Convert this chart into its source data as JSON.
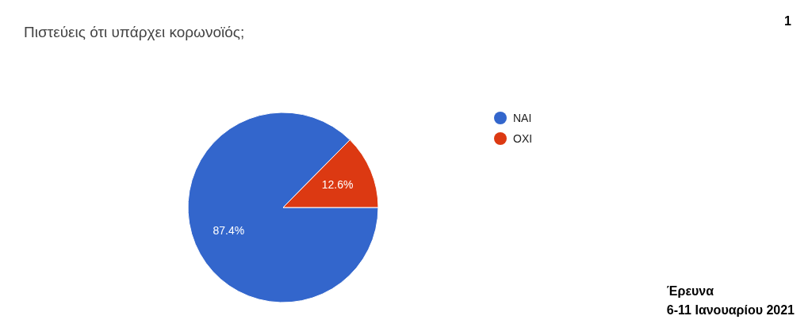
{
  "chart_data": {
    "type": "pie",
    "title": "Πιστεύεις ότι υπάρχει κορωνοϊός;",
    "categories": [
      "NAI",
      "OXI"
    ],
    "values": [
      87.4,
      12.6
    ],
    "colors": [
      "#3366cc",
      "#dc3912"
    ],
    "value_labels": [
      "87.4%",
      "12.6%"
    ],
    "legend": "top right",
    "annotations": [
      "1",
      "Έρευνα",
      "6-11 Ιανουαρίου 2021"
    ]
  }
}
